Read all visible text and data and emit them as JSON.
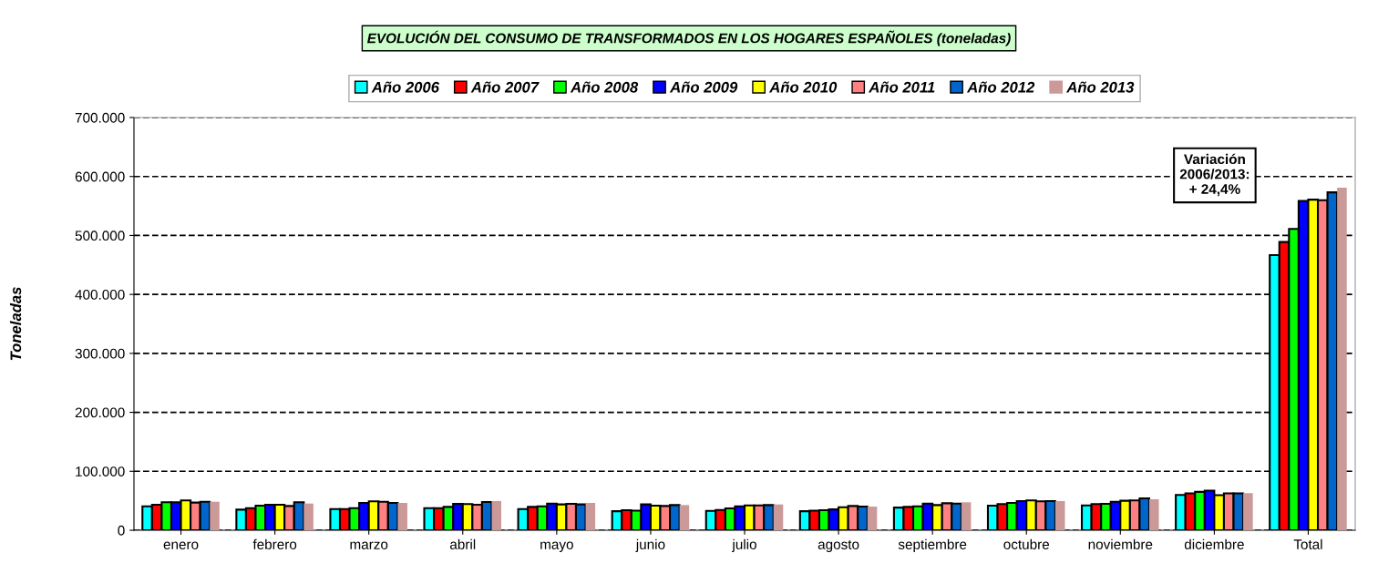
{
  "chart_data": {
    "type": "bar",
    "title": "EVOLUCIÓN DEL CONSUMO DE TRANSFORMADOS EN LOS HOGARES ESPAÑOLES (toneladas)",
    "ylabel": "Toneladas",
    "categories": [
      "enero",
      "febrero",
      "marzo",
      "abril",
      "mayo",
      "junio",
      "julio",
      "agosto",
      "septiembre",
      "octubre",
      "noviembre",
      "diciembre",
      "Total"
    ],
    "series": [
      {
        "name": "Año 2006",
        "color": "#00ffff",
        "values": [
          40600,
          34900,
          35900,
          37500,
          35900,
          32300,
          32800,
          32300,
          38500,
          41700,
          42200,
          59900,
          466700
        ]
      },
      {
        "name": "Año 2007",
        "color": "#ff0000",
        "values": [
          43200,
          37500,
          35900,
          37500,
          39600,
          33900,
          34400,
          33300,
          39600,
          44300,
          44300,
          62500,
          488900
        ]
      },
      {
        "name": "Año 2008",
        "color": "#00ff00",
        "values": [
          47400,
          41700,
          37500,
          39600,
          40600,
          33300,
          37000,
          33900,
          40600,
          46400,
          44800,
          65100,
          511100
        ]
      },
      {
        "name": "Año 2009",
        "color": "#0000ff",
        "values": [
          47400,
          43200,
          46400,
          44800,
          45300,
          43800,
          40600,
          35400,
          45300,
          49500,
          48400,
          67200,
          558700
        ]
      },
      {
        "name": "Año 2010",
        "color": "#ffff00",
        "values": [
          50500,
          43200,
          49000,
          44300,
          43800,
          41700,
          42200,
          39100,
          42700,
          50500,
          50000,
          59400,
          560700
        ]
      },
      {
        "name": "Año 2011",
        "color": "#ff8080",
        "values": [
          46900,
          41100,
          48400,
          43200,
          44800,
          41100,
          42200,
          41100,
          45800,
          49000,
          50500,
          62500,
          559700
        ]
      },
      {
        "name": "Año 2012",
        "color": "#0066cc",
        "values": [
          48400,
          47400,
          46400,
          47900,
          43800,
          42700,
          42700,
          40100,
          45300,
          49500,
          54200,
          62500,
          573100
        ]
      },
      {
        "name": "Año 2013",
        "color": "#cc9999",
        "values": [
          48400,
          45300,
          46400,
          49500,
          46400,
          42700,
          43800,
          40100,
          47400,
          49500,
          52600,
          63000,
          580900
        ]
      }
    ],
    "ylim": [
      0,
      700000
    ],
    "yticks": [
      0,
      {
        "value": 100000,
        "label": "100.000"
      },
      {
        "value": 200000,
        "label": "200.000"
      },
      {
        "value": 300000,
        "label": "300.000"
      },
      {
        "value": 400000,
        "label": "400.000"
      },
      {
        "value": 500000,
        "label": "500.000"
      },
      {
        "value": 600000,
        "label": "600.000"
      },
      {
        "value": 700000,
        "label": "700.000"
      }
    ],
    "grid": "y",
    "legend": "top",
    "annotations": [
      "Variación\n2006/2013:\n+ 24,4%"
    ]
  }
}
